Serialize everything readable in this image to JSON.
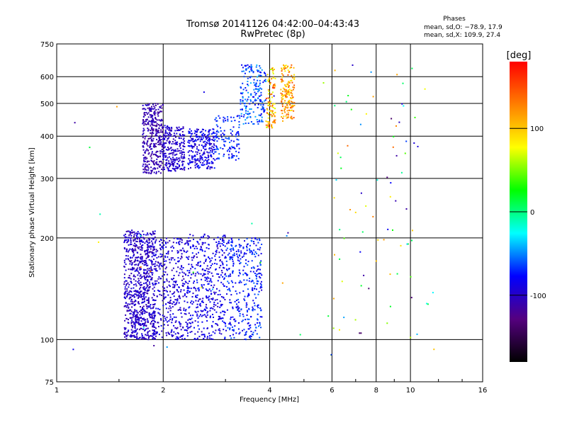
{
  "chart_data": {
    "type": "scatter",
    "title": "Tromsø 20141126 04:42:00–04:43:43",
    "subtitle": "RwPretec (8p)",
    "xlabel": "Frequency [MHz]",
    "ylabel": "Stationary phase Virtual Height [km]",
    "xscale": "log",
    "yscale": "log",
    "xlim": [
      1,
      16
    ],
    "ylim": [
      75,
      750
    ],
    "xticks": [
      1,
      2,
      4,
      6,
      8,
      10,
      16
    ],
    "yticks": [
      75,
      100,
      200,
      300,
      400,
      500,
      600,
      750
    ],
    "grid": true,
    "legend": {
      "title": "Phases",
      "line_o": "mean, sd,O: −78.9, 17.9",
      "line_x": "mean, sd,X: 109.9, 27.4",
      "placement": "top-right"
    },
    "colorbar": {
      "label": "[deg]",
      "range": [
        -180,
        180
      ],
      "ticks": [
        100,
        0,
        -100
      ],
      "colors": [
        "#000000",
        "#55007f",
        "#0000ff",
        "#00ffff",
        "#00ff00",
        "#ffff00",
        "#ff7f00",
        "#ff0000"
      ]
    },
    "clusters": [
      {
        "x": [
          1.55,
          1.9
        ],
        "y": [
          100,
          210
        ],
        "phase": [
          -115,
          -85
        ],
        "n": 850
      },
      {
        "x": [
          1.9,
          2.3
        ],
        "y": [
          100,
          200
        ],
        "phase": [
          -110,
          -80
        ],
        "n": 320
      },
      {
        "x": [
          2.3,
          3.0
        ],
        "y": [
          100,
          205
        ],
        "phase": [
          -105,
          -70
        ],
        "n": 450
      },
      {
        "x": [
          3.0,
          3.8
        ],
        "y": [
          100,
          200
        ],
        "phase": [
          -95,
          -55
        ],
        "n": 360
      },
      {
        "x": [
          1.75,
          2.0
        ],
        "y": [
          310,
          500
        ],
        "phase": [
          -120,
          -95
        ],
        "n": 360
      },
      {
        "x": [
          2.0,
          2.3
        ],
        "y": [
          315,
          430
        ],
        "phase": [
          -110,
          -85
        ],
        "n": 250
      },
      {
        "x": [
          2.35,
          2.8
        ],
        "y": [
          320,
          420
        ],
        "phase": [
          -105,
          -70
        ],
        "n": 250
      },
      {
        "x": [
          2.8,
          3.3
        ],
        "y": [
          340,
          460
        ],
        "phase": [
          -90,
          -55
        ],
        "n": 120
      },
      {
        "x": [
          3.3,
          3.9
        ],
        "y": [
          430,
          650
        ],
        "phase": [
          -85,
          -40
        ],
        "n": 200
      },
      {
        "x": [
          3.9,
          4.15
        ],
        "y": [
          420,
          640
        ],
        "phase": [
          60,
          160
        ],
        "n": 100
      },
      {
        "x": [
          4.3,
          4.7
        ],
        "y": [
          440,
          650
        ],
        "phase": [
          80,
          150
        ],
        "n": 160
      },
      {
        "x": [
          6.0,
          10.5
        ],
        "y": [
          100,
          650
        ],
        "phase": [
          -140,
          140
        ],
        "n": 70
      },
      {
        "x": [
          1.1,
          12.0
        ],
        "y": [
          85,
          650
        ],
        "phase": [
          -120,
          140
        ],
        "n": 45
      }
    ]
  }
}
